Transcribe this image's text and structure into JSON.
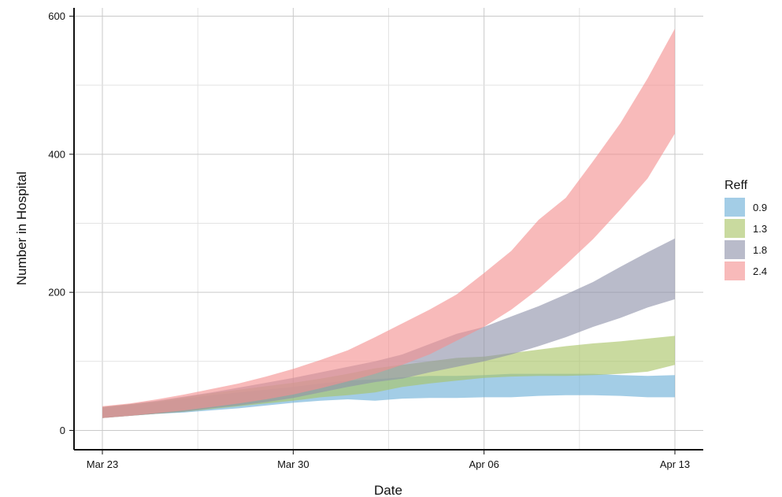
{
  "chart_data": {
    "type": "area",
    "subtype": "ribbon",
    "xlabel": "Date",
    "ylabel": "Number in Hospital",
    "x": [
      "Mar 23",
      "Mar 24",
      "Mar 25",
      "Mar 26",
      "Mar 27",
      "Mar 28",
      "Mar 29",
      "Mar 30",
      "Mar 31",
      "Apr 01",
      "Apr 02",
      "Apr 03",
      "Apr 04",
      "Apr 05",
      "Apr 06",
      "Apr 07",
      "Apr 08",
      "Apr 09",
      "Apr 10",
      "Apr 11",
      "Apr 12",
      "Apr 13"
    ],
    "x_ticks": [
      "Mar 23",
      "Mar 30",
      "Apr 06",
      "Apr 13"
    ],
    "y_ticks": [
      0,
      200,
      400,
      600
    ],
    "ylim": [
      -28,
      612
    ],
    "grid": true,
    "legend": {
      "title": "Reff",
      "position": "right"
    },
    "series": [
      {
        "name": "0.9",
        "color": "#6baed6",
        "lower": [
          18,
          21,
          24,
          26,
          29,
          32,
          36,
          40,
          43,
          45,
          43,
          46,
          47,
          47,
          48,
          48,
          50,
          51,
          51,
          50,
          48,
          48
        ],
        "upper": [
          33,
          37,
          41,
          46,
          51,
          55,
          59,
          63,
          68,
          72,
          74,
          77,
          79,
          79,
          80,
          82,
          82,
          82,
          82,
          80,
          79,
          80
        ]
      },
      {
        "name": "1.3",
        "color": "#a8c364",
        "lower": [
          18,
          21,
          24,
          27,
          31,
          35,
          39,
          43,
          48,
          51,
          55,
          63,
          68,
          72,
          76,
          78,
          79,
          79,
          80,
          82,
          85,
          95
        ],
        "upper": [
          34,
          38,
          42,
          48,
          54,
          59,
          64,
          69,
          75,
          82,
          90,
          95,
          100,
          105,
          107,
          112,
          117,
          122,
          126,
          129,
          133,
          137
        ]
      },
      {
        "name": "1.8",
        "color": "#8e91a9",
        "lower": [
          18,
          21,
          24,
          27,
          32,
          36,
          41,
          47,
          55,
          63,
          70,
          75,
          84,
          92,
          100,
          110,
          122,
          135,
          150,
          163,
          178,
          190
        ],
        "upper": [
          34,
          38,
          43,
          49,
          55,
          62,
          69,
          76,
          84,
          92,
          100,
          110,
          125,
          140,
          150,
          165,
          180,
          197,
          215,
          237,
          258,
          278
        ]
      },
      {
        "name": "2.4",
        "color": "#f48f8f",
        "lower": [
          18,
          21,
          25,
          29,
          34,
          39,
          45,
          52,
          61,
          71,
          82,
          95,
          110,
          130,
          150,
          175,
          205,
          240,
          277,
          320,
          365,
          430
        ],
        "upper": [
          35,
          39,
          45,
          52,
          60,
          68,
          78,
          89,
          102,
          116,
          135,
          155,
          175,
          197,
          228,
          260,
          305,
          337,
          390,
          445,
          510,
          582
        ]
      }
    ]
  }
}
